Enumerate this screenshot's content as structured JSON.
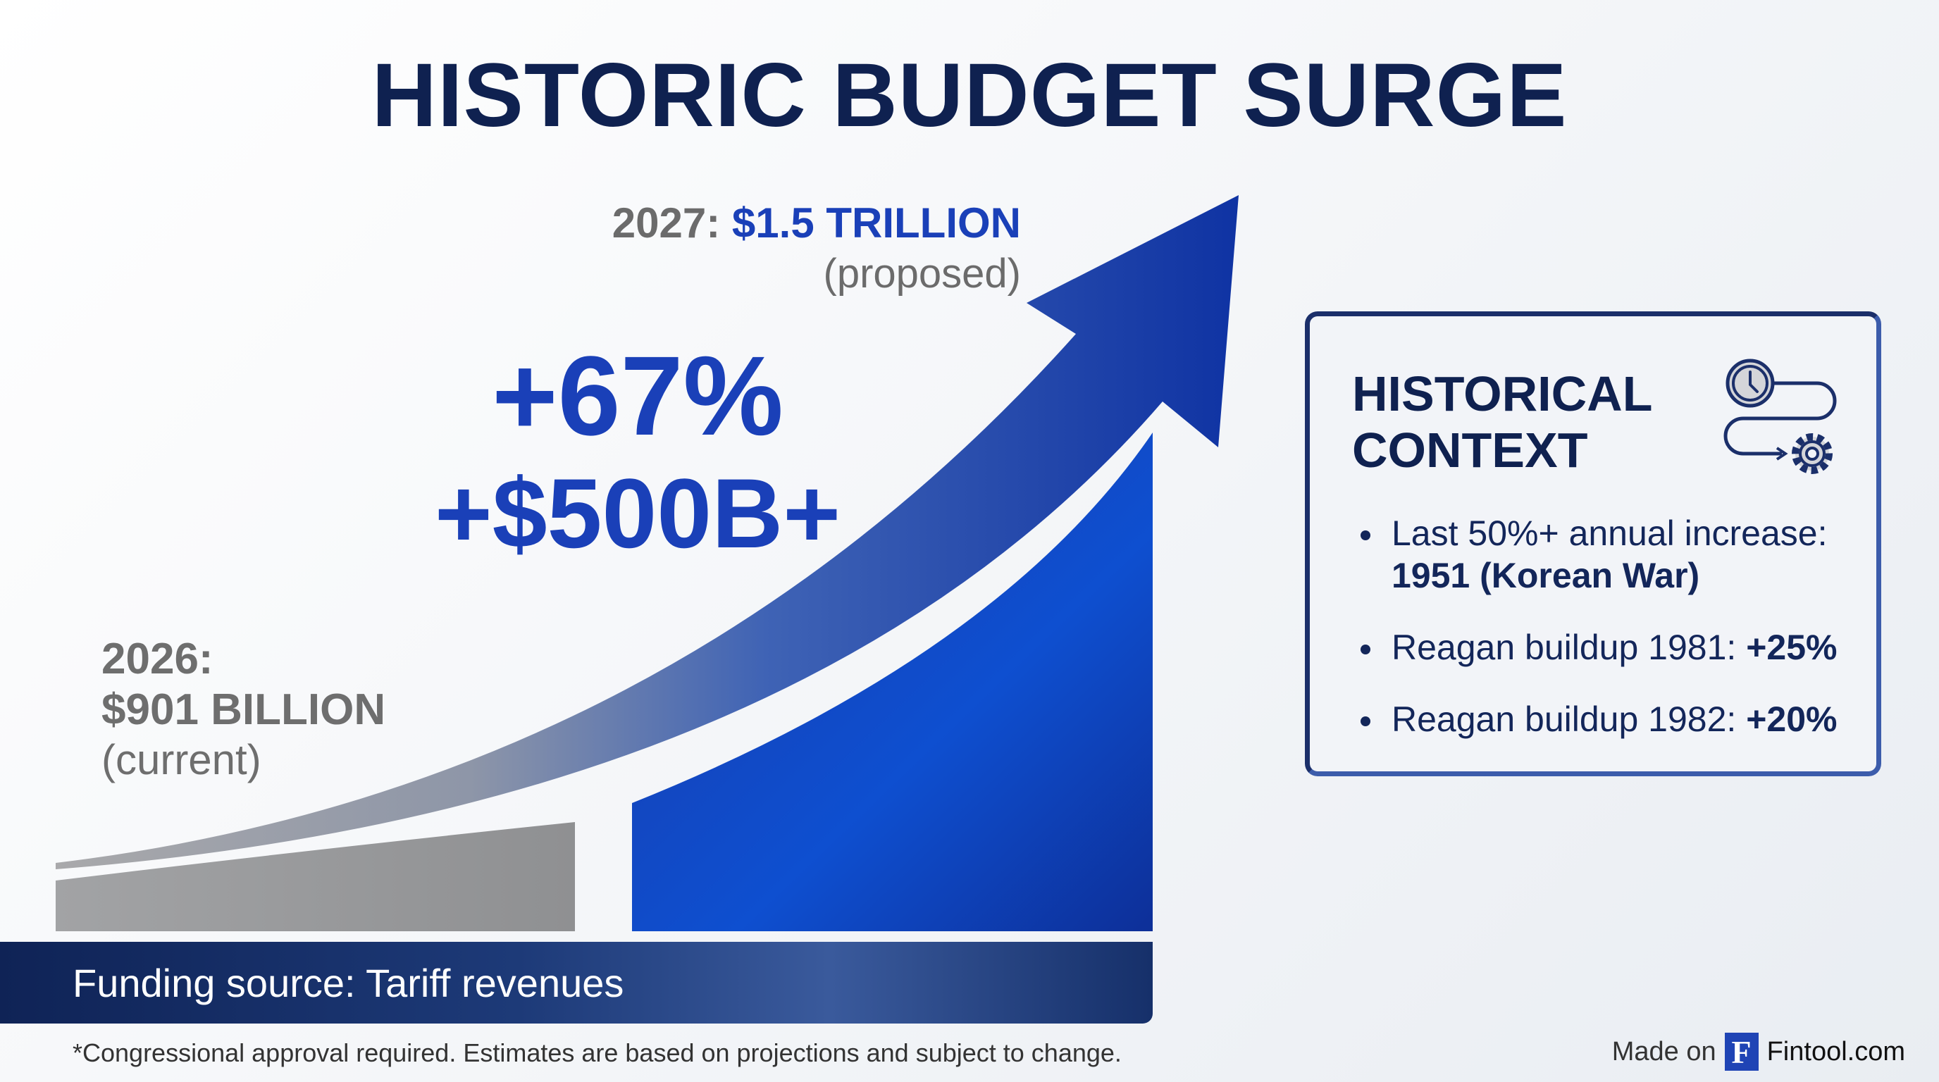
{
  "title": "HISTORIC BUDGET SURGE",
  "proposed": {
    "year_label": "2027:",
    "value": "$1.5 TRILLION",
    "status": "(proposed)"
  },
  "current": {
    "year_label": "2026:",
    "value": "$901 BILLION",
    "status": "(current)"
  },
  "increase": {
    "percent": "+67%",
    "amount": "+$500B+"
  },
  "funding": "Funding source: Tariff revenues",
  "context": {
    "title_line1": "HISTORICAL",
    "title_line2": "CONTEXT",
    "icon": "clock-to-gear-icon",
    "items": [
      {
        "text": "Last 50%+ annual increase: ",
        "bold": "1951 (Korean War)"
      },
      {
        "text": "Reagan buildup 1981: ",
        "bold": "+25%"
      },
      {
        "text": "Reagan buildup 1982: ",
        "bold": "+20%"
      }
    ]
  },
  "disclaimer": "*Congressional approval required. Estimates are based on projections and subject to change.",
  "footer": {
    "made_on": "Made on",
    "logo_letter": "F",
    "brand": "Fintool.com"
  },
  "colors": {
    "navy": "#0f2150",
    "accent_blue": "#1a40b8",
    "gray": "#9a9b9d"
  }
}
